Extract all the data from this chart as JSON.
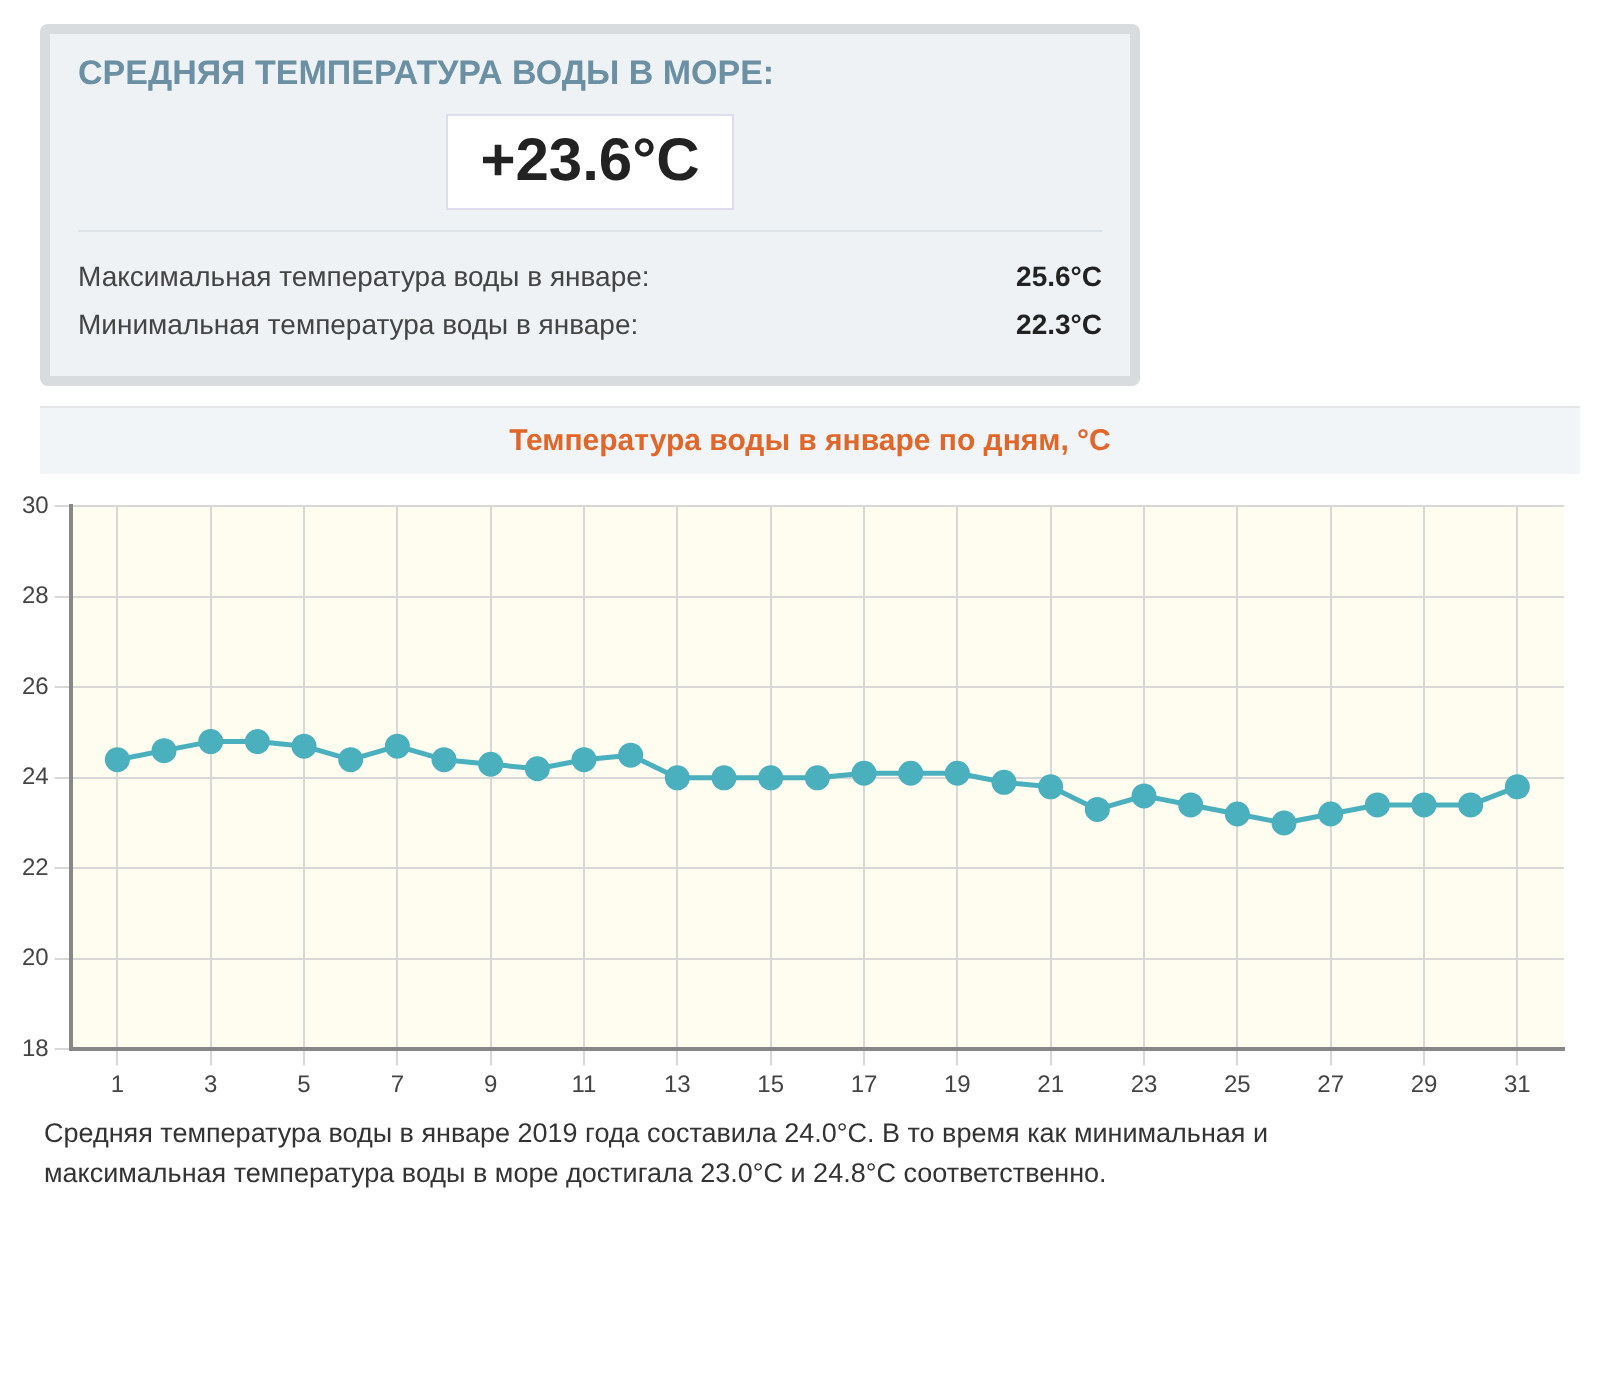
{
  "chart_data": [
    {
      "type": "other",
      "title": "СРЕДНЯЯ ТЕМПЕРАТУРА ВОДЫ В МОРЕ:",
      "annotations": [
        "+23.6°C",
        "Максимальная температура воды в январе:",
        "25.6°C",
        "Минимальная температура воды в январе:",
        "22.3°C"
      ]
    },
    {
      "type": "line",
      "title": "Температура воды в январе по дням, °C",
      "x": [
        1,
        2,
        3,
        4,
        5,
        6,
        7,
        8,
        9,
        10,
        11,
        12,
        13,
        14,
        15,
        16,
        17,
        18,
        19,
        20,
        21,
        22,
        23,
        24,
        25,
        26,
        27,
        28,
        29,
        30,
        31
      ],
      "series": [
        {
          "color": "#4bb0bd",
          "values": [
            24.4,
            24.6,
            24.8,
            24.8,
            24.7,
            24.4,
            24.7,
            24.4,
            24.3,
            24.2,
            24.4,
            24.5,
            24.0,
            24.0,
            24.0,
            24.0,
            24.1,
            24.1,
            24.1,
            23.9,
            23.8,
            23.3,
            23.6,
            23.4,
            23.2,
            23.0,
            23.2,
            23.4,
            23.4,
            23.4,
            23.8
          ]
        }
      ],
      "xlim": [
        0,
        32
      ],
      "xticks": [
        1,
        3,
        5,
        7,
        9,
        11,
        13,
        15,
        17,
        19,
        21,
        23,
        25,
        27,
        29,
        31
      ],
      "ylim": [
        18,
        30
      ],
      "yticks": [
        18,
        20,
        22,
        24,
        26,
        28,
        30
      ],
      "grid": true,
      "legend": false,
      "marker": "circle",
      "line_style": "solid",
      "annotations": [
        "Средняя температура воды в январе 2019 года составила 24.0°C. В то время как минимальная и максимальная температура воды в море достигала 23.0°C и 24.8°C соответственно."
      ]
    }
  ]
}
